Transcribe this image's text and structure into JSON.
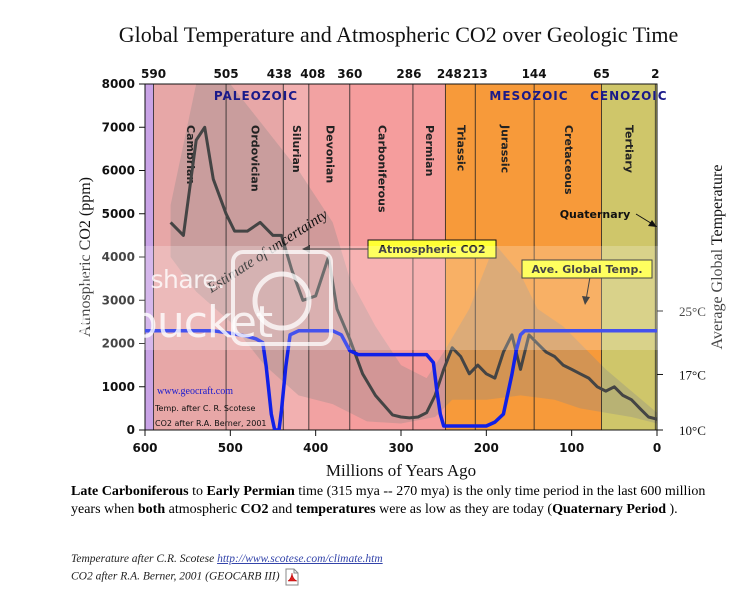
{
  "title": "Global Temperature and Atmospheric CO2 over Geologic Time",
  "chart_data": {
    "type": "line",
    "title": "Global Temperature and Atmospheric CO2 over Geologic Time",
    "xlabel": "Millions of Years Ago",
    "ylabel_left": "Atmospheric CO2 (ppm)",
    "ylabel_right": "Average Global Temperature",
    "xlim": [
      600,
      0
    ],
    "ylim_left": [
      0,
      8000
    ],
    "x_ticks": [
      "600",
      "500",
      "400",
      "300",
      "200",
      "100",
      "0"
    ],
    "y_ticks_left": [
      "0",
      "1000",
      "2000",
      "3000",
      "4000",
      "5000",
      "6000",
      "7000",
      "8000"
    ],
    "y_ticks_right": [
      {
        "label": "10°C",
        "temp": 10
      },
      {
        "label": "17°C",
        "temp": 17
      },
      {
        "label": "25°C",
        "temp": 25
      }
    ],
    "top_ticks": [
      "590",
      "505",
      "438",
      "408",
      "360",
      "286",
      "248",
      "213",
      "144",
      "65",
      "2"
    ],
    "top_tick_values": [
      590,
      505,
      438,
      408,
      360,
      286,
      248,
      213,
      144,
      65,
      2
    ],
    "eras": [
      {
        "label": "PALEOZOIC",
        "x": 470
      },
      {
        "label": "MESOZOIC",
        "x": 150
      },
      {
        "label": "CENOZOIC",
        "x": 33
      }
    ],
    "periods": [
      {
        "name": "Cambrian",
        "start": 590,
        "end": 505,
        "color": "#e7a7a7"
      },
      {
        "name": "Ordovician",
        "start": 505,
        "end": 438,
        "color": "#e7a7a7"
      },
      {
        "name": "Silurian",
        "start": 438,
        "end": 408,
        "color": "#f2b0b0"
      },
      {
        "name": "Devonian",
        "start": 408,
        "end": 360,
        "color": "#f2a2a2"
      },
      {
        "name": "Carboniferous",
        "start": 360,
        "end": 286,
        "color": "#f59d9d"
      },
      {
        "name": "Permian",
        "start": 286,
        "end": 248,
        "color": "#f59d9d"
      },
      {
        "name": "Triassic",
        "start": 248,
        "end": 213,
        "color": "#f79a3a"
      },
      {
        "name": "Jurassic",
        "start": 213,
        "end": 144,
        "color": "#f79a3a"
      },
      {
        "name": "Cretaceous",
        "start": 144,
        "end": 65,
        "color": "#f79a3a"
      },
      {
        "name": "Tertiary",
        "start": 65,
        "end": 2,
        "color": "#cfc66a"
      }
    ],
    "quaternary_label": "Quaternary",
    "series": [
      {
        "name": "Atmospheric CO2",
        "color": "#444444",
        "x": [
          570,
          555,
          540,
          530,
          520,
          505,
          495,
          480,
          465,
          450,
          440,
          428,
          415,
          400,
          385,
          375,
          360,
          345,
          330,
          310,
          300,
          290,
          280,
          270,
          260,
          250,
          240,
          230,
          220,
          210,
          200,
          190,
          180,
          170,
          160,
          150,
          140,
          130,
          120,
          110,
          100,
          90,
          80,
          70,
          60,
          50,
          40,
          30,
          20,
          10,
          0
        ],
        "values": [
          4800,
          4500,
          6700,
          7000,
          5800,
          5000,
          4600,
          4600,
          4800,
          4500,
          4500,
          3700,
          3000,
          3100,
          4000,
          2800,
          2100,
          1300,
          800,
          350,
          300,
          280,
          300,
          400,
          800,
          1400,
          1900,
          1700,
          1300,
          1500,
          1300,
          1200,
          1800,
          2200,
          1400,
          2200,
          2000,
          1800,
          1700,
          1500,
          1400,
          1300,
          1200,
          1000,
          900,
          1000,
          800,
          700,
          500,
          300,
          250
        ]
      },
      {
        "name": "Ave. Global Temp.",
        "color": "#1020e8",
        "x": [
          600,
          560,
          520,
          500,
          490,
          480,
          470,
          462,
          458,
          452,
          448,
          443,
          440,
          435,
          430,
          420,
          410,
          400,
          390,
          380,
          370,
          360,
          350,
          340,
          330,
          320,
          310,
          300,
          290,
          280,
          270,
          262,
          258,
          254,
          250,
          245,
          240,
          230,
          220,
          210,
          200,
          190,
          180,
          170,
          165,
          160,
          155,
          150,
          145,
          140,
          135,
          130,
          120,
          110,
          100,
          90,
          80,
          70,
          62,
          58,
          55,
          52,
          48,
          44,
          40,
          35,
          33,
          32,
          30,
          28,
          25,
          22,
          20,
          15,
          12,
          8,
          5,
          3,
          2,
          0
        ],
        "temps": [
          22.5,
          22.5,
          22.5,
          22.2,
          22.0,
          21.8,
          21.5,
          21.0,
          18.0,
          12.0,
          10.0,
          10.0,
          12.5,
          18.0,
          22.0,
          22.5,
          22.5,
          22.5,
          22.5,
          22.5,
          22.0,
          20.0,
          19.5,
          19.5,
          19.5,
          19.5,
          19.5,
          19.5,
          19.5,
          19.5,
          19.5,
          18.5,
          15.0,
          12.0,
          10.5,
          10.5,
          10.5,
          10.5,
          10.5,
          10.5,
          10.5,
          11.0,
          12.0,
          17.0,
          20.0,
          22.0,
          22.5,
          22.5,
          22.5,
          22.5,
          22.5,
          22.5,
          22.5,
          22.5,
          22.5,
          22.5,
          22.5,
          22.5,
          22.5,
          22.5,
          22.5,
          22.5,
          22.5,
          22.5,
          22.5,
          22.5,
          22.5,
          22.5,
          22.5,
          22.5,
          22.5,
          22.5,
          22.5,
          22.5,
          22.5,
          22.5,
          22.5,
          22.5,
          22.5,
          22.5
        ]
      }
    ],
    "annotations": {
      "co2_box": "Atmospheric CO2",
      "temp_box": "Ave. Global Temp.",
      "uncertainty": "Estimate of uncertainty",
      "geocraft": "www.geocraft.com",
      "credit_temp": "Temp. after C. R. Scotese",
      "credit_co2": "CO2 after R.A. Berner, 2001"
    },
    "grid": false,
    "legend": "inline annotations"
  },
  "caption": {
    "p1_b": "Late Carboniferous",
    "p2": " to ",
    "p3_b": "Early Permian",
    "p4": " time (315 mya -- 270 mya) is the only time period in the last 600 million years when ",
    "p5_b": "both",
    "p6": " atmospheric ",
    "p7_b": "CO2",
    "p8": " and ",
    "p9_b": "temperatures",
    "p10": " were as low as they are today (",
    "p11_b": "Quaternary Period",
    "p12": " )."
  },
  "credits": {
    "line1_text": "Temperature after C.R. Scotese ",
    "line1_link": "http://www.scotese.com/climate.htm",
    "line2_text": "CO2 after R.A. Berner, 2001 (GEOCARB III)",
    "pdf_icon": "pdf-file-icon"
  },
  "watermark": {
    "line1": "host. store. share.",
    "line2": "photobucket"
  }
}
